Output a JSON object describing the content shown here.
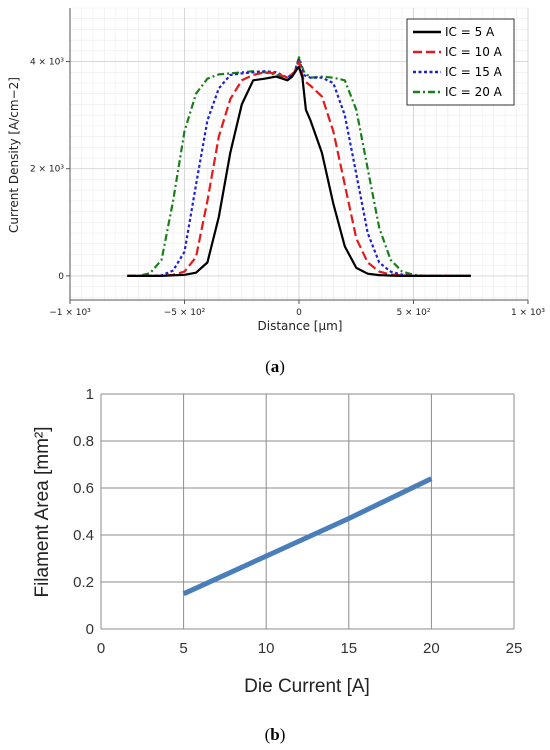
{
  "chart_data": [
    {
      "type": "line",
      "caption": "a",
      "xlabel": "Distance [µm]",
      "ylabel": "Current Density [A/cm−2]",
      "xlim": [
        -1000,
        1000
      ],
      "ylim": [
        -450,
        5000
      ],
      "xticks": [
        {
          "value": -1000,
          "label": "−1 × 10³"
        },
        {
          "value": -500,
          "label": "−5 × 10²"
        },
        {
          "value": 0,
          "label": "0"
        },
        {
          "value": 500,
          "label": "5 × 10²"
        },
        {
          "value": 1000,
          "label": "1 × 10³"
        }
      ],
      "yticks": [
        {
          "value": 0,
          "label": "0"
        },
        {
          "value": 2000,
          "label": "2 × 10³"
        },
        {
          "value": 4000,
          "label": "4 × 10³"
        }
      ],
      "grid": true,
      "legend_position": "top-right",
      "series": [
        {
          "name": "IC = 5 A",
          "color": "#000000",
          "dash": "solid",
          "x": [
            -750,
            -600,
            -500,
            -450,
            -400,
            -350,
            -300,
            -250,
            -200,
            -150,
            -100,
            -50,
            -30,
            -10,
            0,
            15,
            30,
            50,
            100,
            150,
            200,
            250,
            300,
            350,
            400,
            450,
            500,
            600,
            750
          ],
          "y": [
            0,
            0,
            20,
            60,
            250,
            1100,
            2300,
            3200,
            3650,
            3680,
            3720,
            3650,
            3720,
            3850,
            3900,
            3700,
            3100,
            2900,
            2300,
            1350,
            550,
            150,
            40,
            15,
            5,
            0,
            0,
            0,
            0
          ]
        },
        {
          "name": "IC = 10 A",
          "color": "#e31a1c",
          "dash": "dashed",
          "x": [
            -750,
            -600,
            -550,
            -500,
            -450,
            -400,
            -350,
            -300,
            -250,
            -200,
            -150,
            -100,
            -50,
            -20,
            0,
            20,
            50,
            100,
            150,
            200,
            250,
            300,
            350,
            400,
            450,
            500,
            550,
            600,
            750
          ],
          "y": [
            0,
            0,
            20,
            80,
            350,
            1400,
            2600,
            3300,
            3650,
            3750,
            3800,
            3780,
            3700,
            3800,
            4000,
            3650,
            3550,
            3350,
            2700,
            1700,
            700,
            250,
            80,
            25,
            10,
            0,
            0,
            0,
            0
          ]
        },
        {
          "name": "IC = 15 A",
          "color": "#1f1fd6",
          "dash": "dotted",
          "x": [
            -750,
            -650,
            -600,
            -550,
            -500,
            -450,
            -400,
            -350,
            -300,
            -250,
            -200,
            -150,
            -100,
            -50,
            -20,
            0,
            20,
            50,
            100,
            150,
            200,
            250,
            300,
            350,
            400,
            450,
            500,
            550,
            600,
            750
          ],
          "y": [
            0,
            0,
            10,
            100,
            450,
            1700,
            2900,
            3500,
            3750,
            3780,
            3800,
            3820,
            3800,
            3700,
            3800,
            4050,
            3750,
            3700,
            3700,
            3600,
            3000,
            1900,
            800,
            250,
            80,
            25,
            0,
            0,
            0,
            0
          ]
        },
        {
          "name": "IC = 20 A",
          "color": "#1a7f1a",
          "dash": "dashdot",
          "x": [
            -750,
            -700,
            -650,
            -600,
            -550,
            -500,
            -450,
            -400,
            -350,
            -300,
            -250,
            -200,
            -150,
            -100,
            -50,
            -20,
            0,
            20,
            50,
            100,
            150,
            200,
            250,
            300,
            350,
            400,
            450,
            500,
            550,
            600,
            750
          ],
          "y": [
            0,
            0,
            50,
            300,
            1400,
            2700,
            3400,
            3680,
            3760,
            3780,
            3800,
            3820,
            3800,
            3750,
            3700,
            3800,
            4080,
            3820,
            3700,
            3720,
            3700,
            3650,
            3100,
            2000,
            900,
            300,
            80,
            20,
            0,
            0,
            0
          ]
        }
      ]
    },
    {
      "type": "line",
      "caption": "b",
      "xlabel": "Die Current [A]",
      "ylabel": "Filament Area [mm²]",
      "xlim": [
        0,
        25
      ],
      "ylim": [
        0,
        1
      ],
      "xticks": [
        "0",
        "5",
        "10",
        "15",
        "20",
        "25"
      ],
      "yticks": [
        "0",
        "0.2",
        "0.4",
        "0.6",
        "0.8",
        "1"
      ],
      "grid": true,
      "series": [
        {
          "color": "#4a7ebb",
          "x": [
            5,
            10,
            15,
            20
          ],
          "y": [
            0.15,
            0.31,
            0.47,
            0.64
          ]
        }
      ]
    }
  ]
}
